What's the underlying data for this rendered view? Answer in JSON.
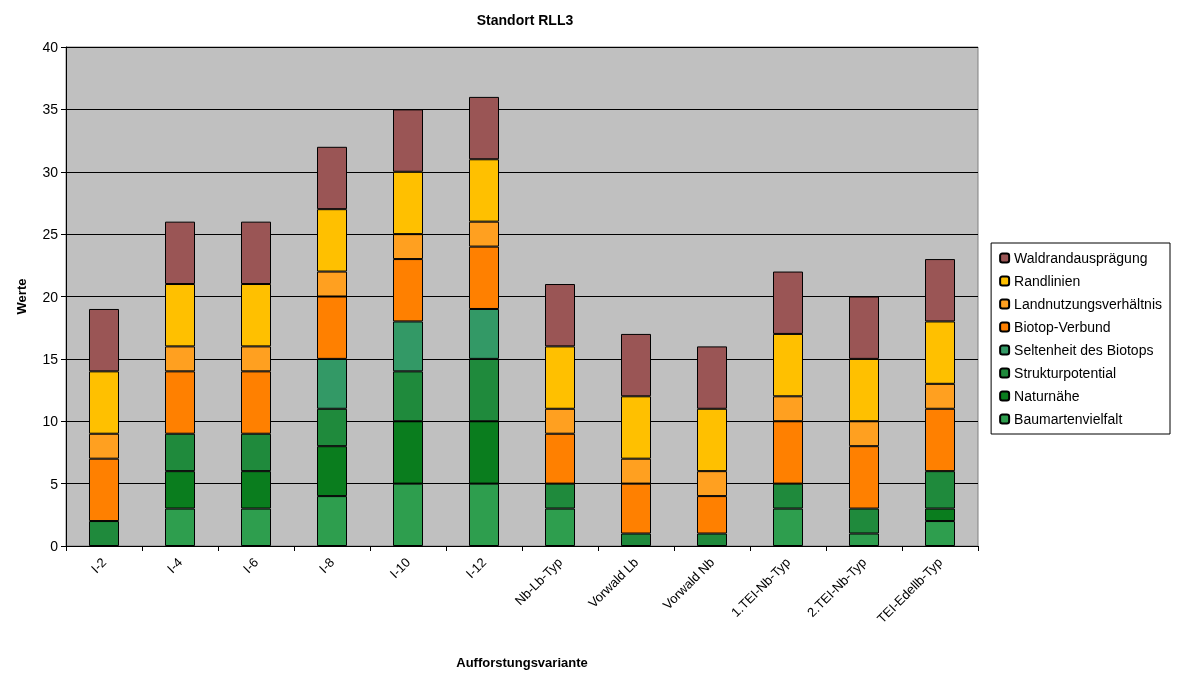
{
  "chart_data": {
    "type": "bar",
    "title": "Standort RLL3",
    "xlabel": "Aufforstungsvariante",
    "ylabel": "Werte",
    "categories": [
      "I-2",
      "I-4",
      "I-6",
      "I-8",
      "I-10",
      "I-12",
      "Nb-Lb-Typ",
      "Vorwald Lb",
      "Vorwald Nb",
      "1.TEI-Nb-Typ",
      "2.TEI-Nb-Typ",
      "TEI-Edellb-Typ"
    ],
    "stacked": true,
    "series": [
      {
        "name": "Baumartenvielfalt",
        "color": "#2e9e4e",
        "values": [
          0,
          3,
          3,
          4,
          5,
          5,
          3,
          0,
          0,
          3,
          1,
          2
        ]
      },
      {
        "name": "Naturnähe",
        "color": "#0a7d1e",
        "values": [
          0,
          3,
          3,
          4,
          5,
          5,
          0,
          0,
          0,
          0,
          0,
          1
        ]
      },
      {
        "name": "Strukturpotential",
        "color": "#1f8a3c",
        "values": [
          2,
          3,
          3,
          3,
          4,
          5,
          2,
          1,
          1,
          2,
          2,
          3
        ]
      },
      {
        "name": "Seltenheit des Biotops",
        "color": "#339966",
        "values": [
          0,
          0,
          0,
          4,
          4,
          4,
          0,
          0,
          0,
          0,
          0,
          0
        ]
      },
      {
        "name": "Biotop-Verbund",
        "color": "#ff8000",
        "values": [
          5,
          5,
          5,
          5,
          5,
          5,
          4,
          4,
          3,
          5,
          5,
          5
        ]
      },
      {
        "name": "Landnutzungsverhältnis",
        "color": "#ffa020",
        "values": [
          2,
          2,
          2,
          2,
          2,
          2,
          2,
          2,
          2,
          2,
          2,
          2
        ]
      },
      {
        "name": "Randlinien",
        "color": "#ffc000",
        "values": [
          5,
          5,
          5,
          5,
          5,
          5,
          5,
          5,
          5,
          5,
          5,
          5
        ]
      },
      {
        "name": "Waldrandausprägung",
        "color": "#9a5555",
        "values": [
          5,
          5,
          5,
          5,
          5,
          5,
          5,
          5,
          5,
          5,
          5,
          5
        ]
      }
    ],
    "ylim": [
      0,
      40
    ],
    "yticks": [
      0,
      5,
      10,
      15,
      20,
      25,
      30,
      35,
      40
    ],
    "grid": "y",
    "legend": "right"
  }
}
